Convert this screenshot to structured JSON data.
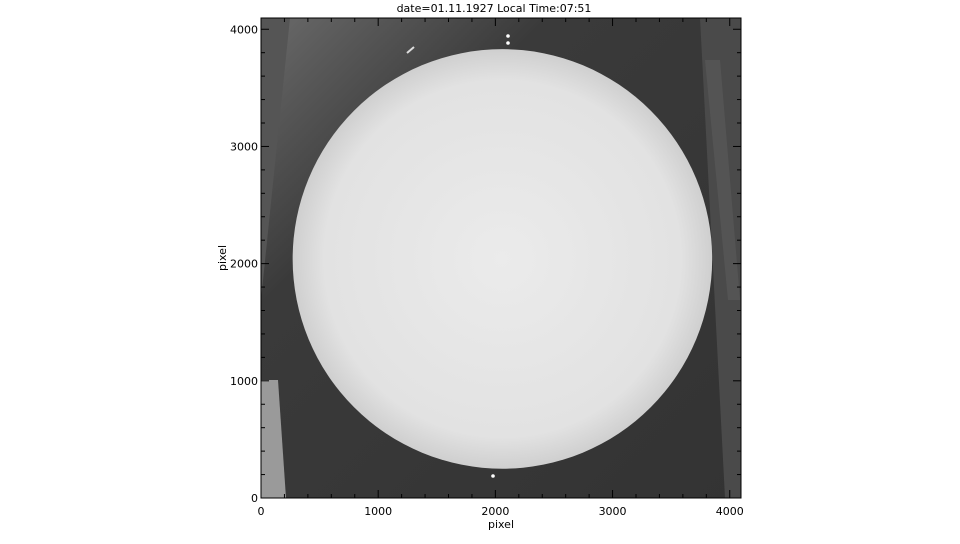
{
  "chart_data": {
    "type": "heatmap",
    "title": "date=01.11.1927 Local Time:07:51",
    "xlabel": "pixel",
    "ylabel": "pixel",
    "xlim": [
      0,
      4096
    ],
    "ylim": [
      0,
      4096
    ],
    "xticks": [
      0,
      1000,
      2000,
      3000,
      4000
    ],
    "yticks": [
      0,
      1000,
      2000,
      3000,
      4000
    ],
    "xtick_labels": [
      "0",
      "1000",
      "2000",
      "3000",
      "4000"
    ],
    "ytick_labels": [
      "0",
      "1000",
      "2000",
      "3000",
      "4000"
    ],
    "minor_tick_step": 200,
    "colormap": "grayscale",
    "solar_disk": {
      "center_x": 2060,
      "center_y": 2040,
      "radius": 1790
    },
    "colors": {
      "background": "#3a3a3a",
      "disk": "#e4e4e4",
      "frame": "#000000"
    }
  }
}
